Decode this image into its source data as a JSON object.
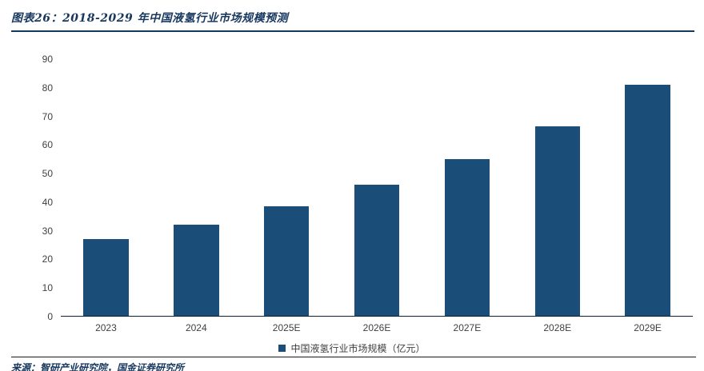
{
  "header": {
    "title": "图表26：2018-2029 年中国液氢行业市场规模预测"
  },
  "chart_data": {
    "type": "bar",
    "title": "2018-2029 年中国液氢行业市场规模预测",
    "categories": [
      "2023",
      "2024",
      "2025E",
      "2026E",
      "2027E",
      "2028E",
      "2029E"
    ],
    "values": [
      27,
      32,
      38.5,
      46,
      55,
      66.5,
      81
    ],
    "series_name": "中国液氢行业市场规模（亿元）",
    "xlabel": "",
    "ylabel": "",
    "ylim": [
      0,
      90
    ],
    "ytick_step": 10,
    "grid": false,
    "legend_position": "bottom",
    "bar_color": "#1a4e79"
  },
  "legend": {
    "label": "中国液氢行业市场规模（亿元）"
  },
  "footer": {
    "source": "来源：智研产业研究院，国金证券研究所"
  }
}
